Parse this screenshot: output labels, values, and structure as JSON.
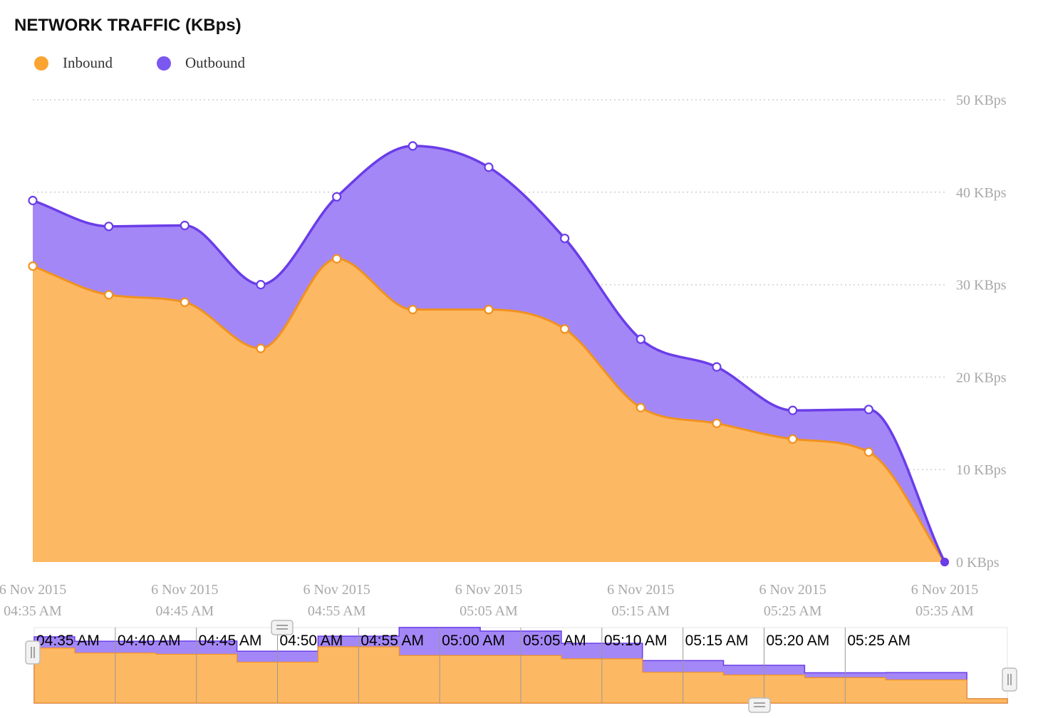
{
  "title": "NETWORK TRAFFIC (KBps)",
  "legend": {
    "inbound": "Inbound",
    "outbound": "Outbound"
  },
  "colors": {
    "inbound_line": "#f0921e",
    "inbound_fill": "#fdb863",
    "outbound_line": "#6a3de8",
    "outbound_fill": "#a487f7",
    "legend_inbound": "#fba431",
    "legend_outbound": "#7b58f0",
    "grid": "#cfcfcf",
    "tick": "#a8a8a8"
  },
  "chart_data": {
    "type": "area",
    "stacked": true,
    "title": "NETWORK TRAFFIC (KBps)",
    "x": [
      "04:35 AM",
      "04:40 AM",
      "04:45 AM",
      "04:50 AM",
      "04:55 AM",
      "05:00 AM",
      "05:05 AM",
      "05:10 AM",
      "05:15 AM",
      "05:20 AM",
      "05:25 AM",
      "05:30 AM",
      "05:35 AM"
    ],
    "series": [
      {
        "name": "Inbound",
        "values": [
          32,
          28.9,
          28.1,
          23.1,
          32.8,
          27.3,
          27.3,
          25.2,
          16.7,
          15,
          13.3,
          11.9,
          0
        ]
      },
      {
        "name": "Outbound",
        "values": [
          7.1,
          7.4,
          8.3,
          6.9,
          6.7,
          17.7,
          15.4,
          9.8,
          7.4,
          6.1,
          3.1,
          4.6,
          0
        ]
      }
    ],
    "ylim": [
      0,
      50
    ],
    "ytick_values": [
      0,
      10,
      20,
      30,
      40,
      50
    ],
    "ytick_labels": [
      "0 KBps",
      "10 KBps",
      "20 KBps",
      "30 KBps",
      "40 KBps",
      "50 KBps"
    ],
    "xtick_labels": [
      {
        "date": "6 Nov 2015",
        "time": "04:35 AM",
        "index": 0
      },
      {
        "date": "6 Nov 2015",
        "time": "04:45 AM",
        "index": 2
      },
      {
        "date": "6 Nov 2015",
        "time": "04:55 AM",
        "index": 4
      },
      {
        "date": "6 Nov 2015",
        "time": "05:05 AM",
        "index": 6
      },
      {
        "date": "6 Nov 2015",
        "time": "05:15 AM",
        "index": 8
      },
      {
        "date": "6 Nov 2015",
        "time": "05:25 AM",
        "index": 10
      },
      {
        "date": "6 Nov 2015",
        "time": "05:35 AM",
        "index": 12
      }
    ],
    "grid": true,
    "legend_position": "top-left"
  },
  "navigator": {
    "labels": [
      "04:35 AM",
      "04:40 AM",
      "04:45 AM",
      "04:50 AM",
      "04:55 AM",
      "05:00 AM",
      "05:05 AM",
      "05:10 AM",
      "05:15 AM",
      "05:20 AM",
      "05:25 AM"
    ]
  }
}
